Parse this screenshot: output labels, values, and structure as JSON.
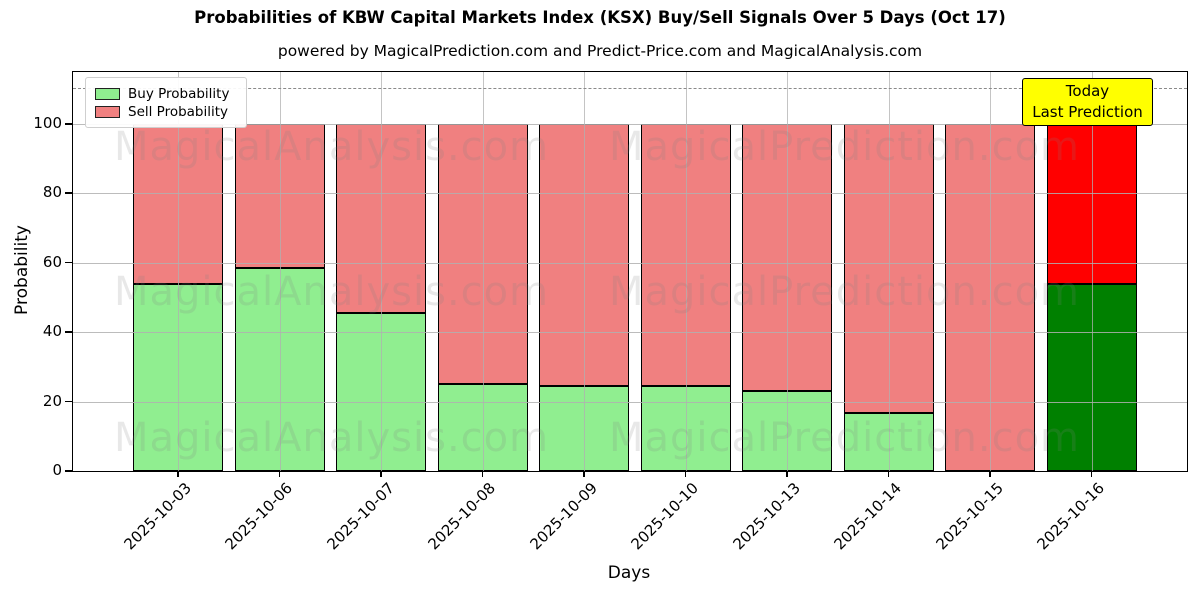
{
  "header": {
    "title": "Probabilities of KBW Capital Markets Index (KSX) Buy/Sell Signals Over 5 Days (Oct 17)",
    "subtitle": "powered by MagicalPrediction.com and Predict-Price.com and MagicalAnalysis.com"
  },
  "axes": {
    "y_label": "Probability",
    "x_label": "Days",
    "y_ticks": [
      0,
      20,
      40,
      60,
      80,
      100
    ],
    "y_max": 115,
    "dashed_guide_y": 110,
    "grid": true
  },
  "legend": {
    "position": "upper-left",
    "items": [
      {
        "label": "Buy Probability",
        "color": "#90EE90"
      },
      {
        "label": "Sell Probability",
        "color": "#F08080"
      }
    ]
  },
  "annotation": {
    "line1": "Today",
    "line2": "Last Prediction",
    "bg_color": "#FFFF00"
  },
  "watermarks": {
    "left_text": "MagicalAnalysis.com",
    "right_text": "MagicalPrediction.com"
  },
  "chart_data": {
    "type": "bar",
    "stacked": true,
    "title": "Probabilities of KBW Capital Markets Index (KSX) Buy/Sell Signals Over 5 Days (Oct 17)",
    "xlabel": "Days",
    "ylabel": "Probability",
    "ylim": [
      0,
      115
    ],
    "dashed_line_y": 110,
    "legend_position": "upper left",
    "categories": [
      "2025-10-03",
      "2025-10-06",
      "2025-10-07",
      "2025-10-08",
      "2025-10-09",
      "2025-10-10",
      "2025-10-13",
      "2025-10-14",
      "2025-10-15",
      "2025-10-16"
    ],
    "series": [
      {
        "name": "Buy Probability",
        "color": "#90EE90",
        "values": [
          54,
          58.5,
          45.4,
          25.2,
          24.4,
          24.6,
          23,
          16.8,
          0,
          54
        ]
      },
      {
        "name": "Sell Probability",
        "color": "#F08080",
        "values": [
          46,
          41.5,
          54.6,
          74.8,
          75.6,
          75.4,
          77,
          83.2,
          100,
          46
        ]
      }
    ],
    "last_bar_highlight": {
      "buy_color": "#008000",
      "sell_color": "#FF0000"
    }
  }
}
